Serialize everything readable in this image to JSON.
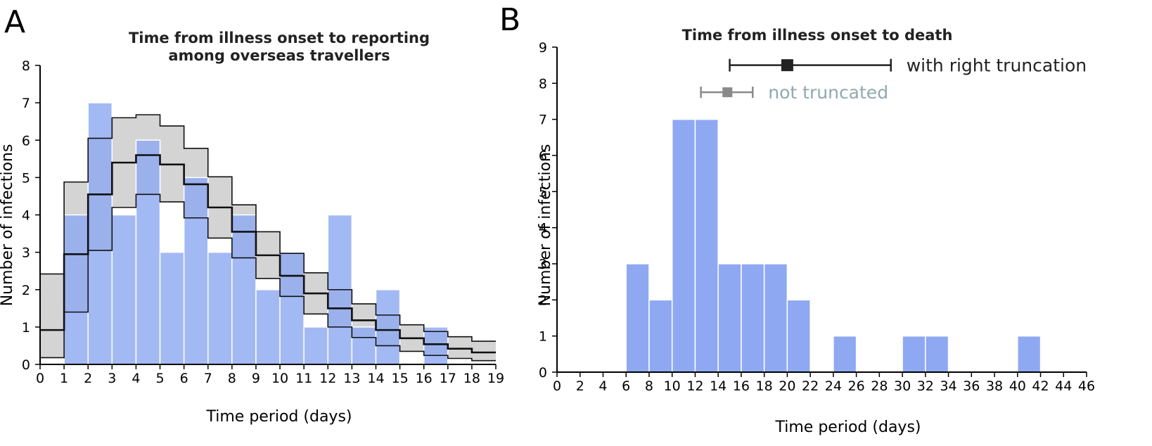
{
  "panels": {
    "a": {
      "letter": "A",
      "title_line1": "Time from illness onset to reporting",
      "title_line2": "among overseas travellers"
    },
    "b": {
      "letter": "B",
      "title": "Time from illness onset to death",
      "legend": [
        {
          "label": "with right truncation",
          "color": "#222222",
          "point": 20,
          "low": 15,
          "high": 29
        },
        {
          "label": "not truncated",
          "color": "#8a8a8a",
          "text_color": "#8fa9b0",
          "point": 14.8,
          "low": 12.5,
          "high": 17
        }
      ]
    }
  },
  "chart_data": [
    {
      "type": "bar",
      "title": "Time from illness onset to reporting among overseas travellers",
      "xlabel": "Time period (days)",
      "ylabel": "Number of infections",
      "xlim": [
        0,
        19
      ],
      "ylim": [
        0,
        8
      ],
      "x_ticks": [
        0,
        1,
        2,
        3,
        4,
        5,
        6,
        7,
        8,
        9,
        10,
        11,
        12,
        13,
        14,
        15,
        16,
        17,
        18,
        19
      ],
      "y_ticks": [
        0,
        1,
        2,
        3,
        4,
        5,
        6,
        7,
        8
      ],
      "bin_starts": [
        0,
        1,
        2,
        3,
        4,
        5,
        6,
        7,
        8,
        9,
        10,
        11,
        12,
        13,
        14,
        15,
        16,
        17,
        18
      ],
      "bar_color": "#8ea9f2",
      "values": [
        0,
        4,
        7,
        4,
        6,
        3,
        5,
        3,
        4,
        2,
        3,
        1,
        4,
        1,
        2,
        0,
        1,
        0,
        0
      ],
      "fit_median": [
        0.92,
        2.95,
        4.55,
        5.4,
        5.6,
        5.35,
        4.82,
        4.2,
        3.55,
        2.92,
        2.37,
        1.9,
        1.5,
        1.18,
        0.92,
        0.7,
        0.54,
        0.42,
        0.32
      ],
      "fit_lower": [
        0.18,
        1.4,
        3.05,
        4.2,
        4.55,
        4.35,
        3.92,
        3.38,
        2.85,
        2.3,
        1.82,
        1.35,
        1.0,
        0.72,
        0.5,
        0.35,
        0.24,
        0.16,
        0.1
      ],
      "fit_upper": [
        2.42,
        4.88,
        6.05,
        6.6,
        6.68,
        6.38,
        5.78,
        5.02,
        4.27,
        3.55,
        2.97,
        2.45,
        2.0,
        1.62,
        1.32,
        1.06,
        0.88,
        0.74,
        0.62
      ],
      "band_fill": "#d4d4d4"
    },
    {
      "type": "bar",
      "title": "Time from illness onset to death",
      "xlabel": "Time period (days)",
      "ylabel": "Number of infections",
      "xlim": [
        0,
        46
      ],
      "ylim": [
        0,
        9
      ],
      "x_ticks": [
        0,
        2,
        4,
        6,
        8,
        10,
        12,
        14,
        16,
        18,
        20,
        22,
        24,
        26,
        28,
        30,
        32,
        34,
        36,
        38,
        40,
        42,
        44,
        46
      ],
      "y_ticks": [
        0,
        1,
        2,
        3,
        4,
        5,
        6,
        7,
        8,
        9
      ],
      "bin_width": 2,
      "bin_starts": [
        0,
        2,
        4,
        6,
        8,
        10,
        12,
        14,
        16,
        18,
        20,
        22,
        24,
        26,
        28,
        30,
        32,
        34,
        36,
        38,
        40,
        42,
        44
      ],
      "bar_color": "#8ea9f2",
      "values": [
        0,
        0,
        0,
        3,
        2,
        7,
        7,
        3,
        3,
        3,
        2,
        0,
        1,
        0,
        0,
        1,
        1,
        0,
        0,
        0,
        1,
        0,
        0
      ]
    }
  ]
}
